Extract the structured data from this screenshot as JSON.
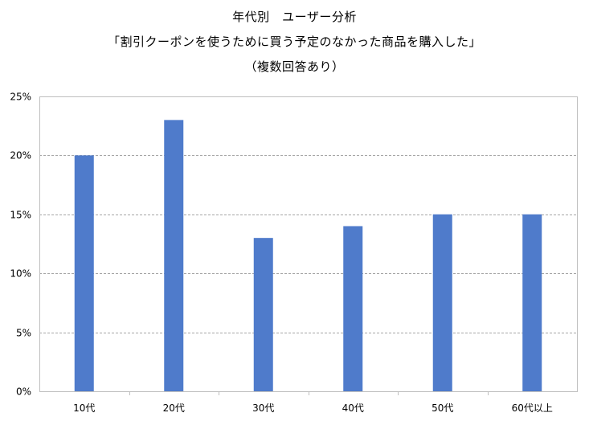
{
  "chart_data": {
    "type": "bar",
    "title_lines": [
      "年代別　ユーザー分析",
      "「割引クーポンを使うために買う予定のなかった商品を購入した」",
      "（複数回答あり）"
    ],
    "categories": [
      "10代",
      "20代",
      "30代",
      "40代",
      "50代",
      "60代以上"
    ],
    "values": [
      20,
      23,
      13,
      14,
      15,
      15
    ],
    "unit": "%",
    "ylim": [
      0,
      25
    ],
    "yticks": [
      "0%",
      "5%",
      "10%",
      "15%",
      "20%",
      "25%"
    ],
    "ytick_values": [
      0,
      5,
      10,
      15,
      20,
      25
    ],
    "grid": true,
    "legend": "none",
    "colors": {
      "bar": "#4F7BCB",
      "grid": "#A6A6A6",
      "axis": "#BFBFBF"
    }
  }
}
